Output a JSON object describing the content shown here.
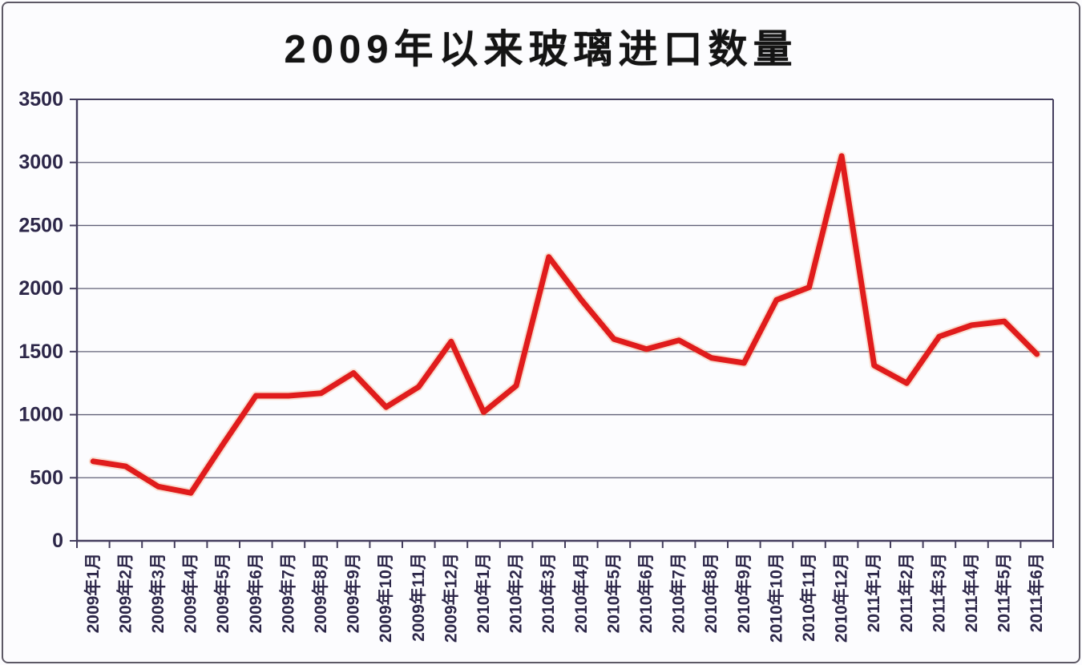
{
  "title": "2009年以来玻璃进口数量",
  "colors": {
    "background": "#fcfcfe",
    "outer_border": "#5d5965",
    "axis_frame": "#443e5e",
    "gridline": "#616177",
    "axis_label": "#2d2749",
    "title_text": "#141414",
    "series_line": "#e01c1c",
    "series_halo": "#f29a6d"
  },
  "chart_data": {
    "type": "line",
    "title": "2009年以来玻璃进口数量",
    "series_name": "玻璃进口数量",
    "categories": [
      "2009年1月",
      "2009年2月",
      "2009年3月",
      "2009年4月",
      "2009年5月",
      "2009年6月",
      "2009年7月",
      "2009年8月",
      "2009年9月",
      "2009年10月",
      "2009年11月",
      "2009年12月",
      "2010年1月",
      "2010年2月",
      "2010年3月",
      "2010年4月",
      "2010年5月",
      "2010年6月",
      "2010年7月",
      "2010年8月",
      "2010年9月",
      "2010年10月",
      "2010年11月",
      "2010年12月",
      "2011年1月",
      "2011年2月",
      "2011年3月",
      "2011年4月",
      "2011年5月",
      "2011年6月"
    ],
    "values": [
      630,
      590,
      430,
      380,
      770,
      1150,
      1150,
      1170,
      1330,
      1060,
      1220,
      1580,
      1020,
      1230,
      2250,
      1910,
      1600,
      1520,
      1590,
      1450,
      1410,
      1910,
      2010,
      3050,
      1390,
      1250,
      1620,
      1710,
      1740,
      1480
    ],
    "xlabel": "",
    "ylabel": "",
    "ylim": [
      0,
      3500
    ],
    "yticks": [
      0,
      500,
      1000,
      1500,
      2000,
      2500,
      3000,
      3500
    ],
    "grid": true,
    "legend_position": "none",
    "x_label_rotation_deg": -90,
    "line_color": "#e01c1c"
  }
}
